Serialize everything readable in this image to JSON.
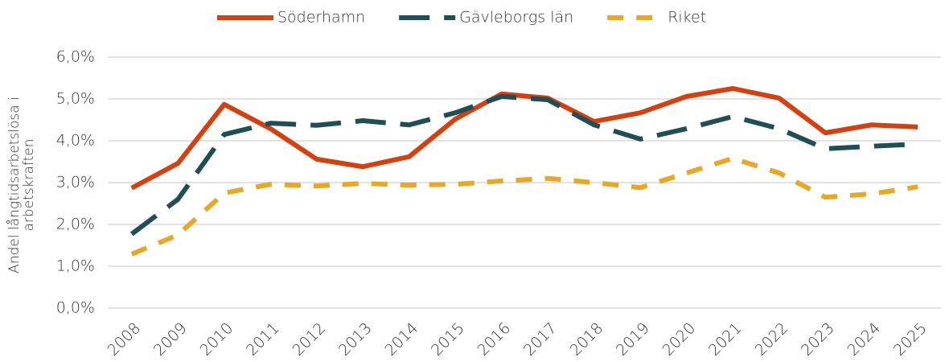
{
  "chart_data": {
    "type": "line",
    "categories": [
      "2008",
      "2009",
      "2010",
      "2011",
      "2012",
      "2013",
      "2014",
      "2015",
      "2016",
      "2017",
      "2018",
      "2019",
      "2020",
      "2021",
      "2022",
      "2023",
      "2024",
      "2025"
    ],
    "series": [
      {
        "name": "Söderhamn",
        "color": "#d4400f",
        "dash": "solid",
        "values": [
          2.87,
          3.46,
          4.87,
          4.29,
          3.56,
          3.38,
          3.62,
          4.52,
          5.12,
          5.02,
          4.46,
          4.67,
          5.06,
          5.25,
          5.02,
          4.19,
          4.38,
          4.33
        ]
      },
      {
        "name": "Gävleborgs län",
        "color": "#1f4e55",
        "dash": "longdash",
        "values": [
          1.77,
          2.6,
          4.15,
          4.42,
          4.37,
          4.48,
          4.38,
          4.67,
          5.06,
          4.98,
          4.38,
          4.04,
          4.29,
          4.58,
          4.29,
          3.81,
          3.87,
          3.92
        ]
      },
      {
        "name": "Riket",
        "color": "#e8a825",
        "dash": "dash",
        "values": [
          1.29,
          1.75,
          2.75,
          2.96,
          2.92,
          2.98,
          2.94,
          2.96,
          3.04,
          3.1,
          3.0,
          2.88,
          3.23,
          3.58,
          3.23,
          2.65,
          2.73,
          2.9
        ]
      }
    ],
    "y_label": [
      "Andel långtidsarbetslösa i",
      "arbetskraften"
    ],
    "ylim": [
      0,
      6
    ],
    "yticks": [
      {
        "value": 0,
        "label": "0,0%"
      },
      {
        "value": 1,
        "label": "1,0%"
      },
      {
        "value": 2,
        "label": "2,0%"
      },
      {
        "value": 3,
        "label": "3,0%"
      },
      {
        "value": 4,
        "label": "4,0%"
      },
      {
        "value": 5,
        "label": "5,0%"
      },
      {
        "value": 6,
        "label": "6,0%"
      }
    ],
    "grid": true,
    "legend": "top"
  }
}
